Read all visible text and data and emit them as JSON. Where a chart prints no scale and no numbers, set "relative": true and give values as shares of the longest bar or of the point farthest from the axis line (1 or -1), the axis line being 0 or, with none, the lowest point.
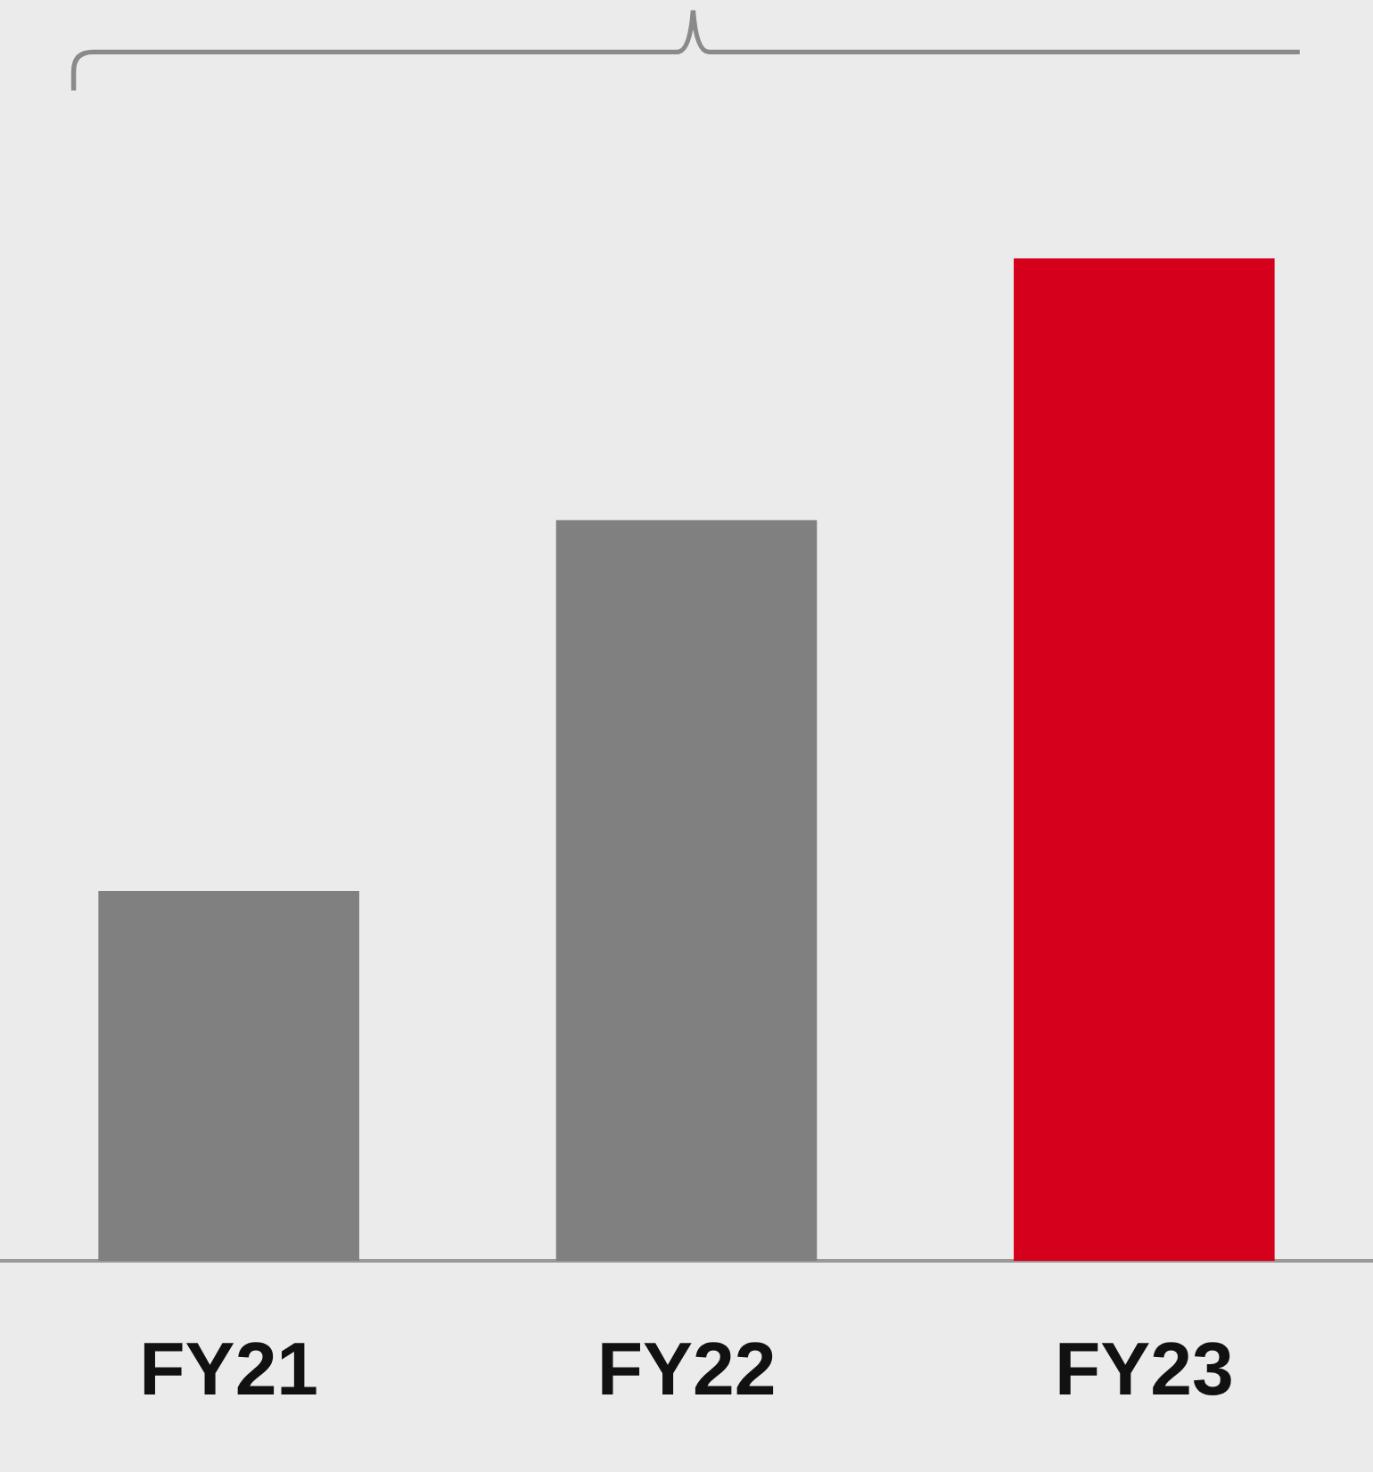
{
  "chart_data": {
    "type": "bar",
    "categories": [
      "FY21",
      "FY22",
      "FY23"
    ],
    "values": [
      0.369,
      0.739,
      1
    ],
    "colors": [
      "#808080",
      "#808080",
      "#d5001c"
    ],
    "relative": true
  }
}
